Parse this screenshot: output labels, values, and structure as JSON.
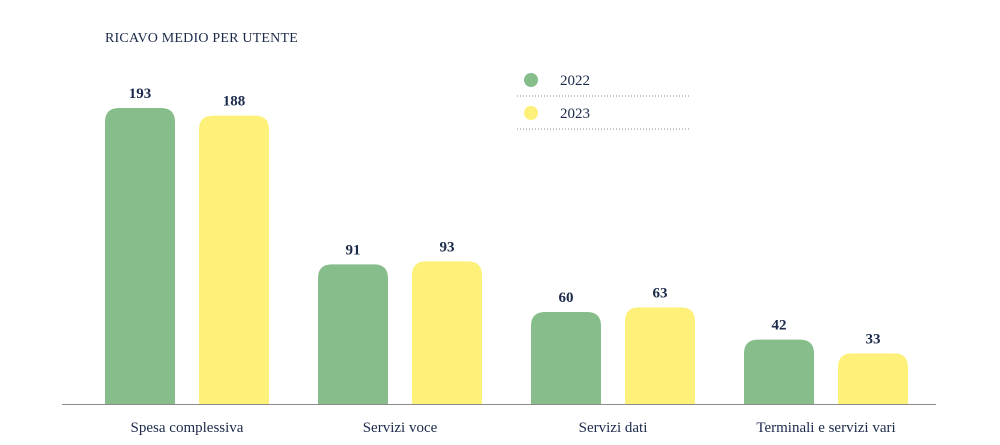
{
  "chart_data": {
    "type": "bar",
    "title": "RICAVO MEDIO PER UTENTE",
    "categories": [
      "Spesa complessiva",
      "Servizi voce",
      "Servizi dati",
      "Terminali e servizi vari"
    ],
    "series": [
      {
        "name": "2022",
        "values": [
          193,
          91,
          60,
          42
        ],
        "color": "#86bd8a"
      },
      {
        "name": "2023",
        "values": [
          188,
          93,
          63,
          33
        ],
        "color": "#fdf17a"
      }
    ],
    "ylim": [
      0,
      193
    ],
    "grid": false,
    "legend_position": "top-right"
  },
  "colors": {
    "text": "#1b2a4a",
    "axis": "#8c8c8c",
    "legend_rule": "#8c8c8c"
  }
}
